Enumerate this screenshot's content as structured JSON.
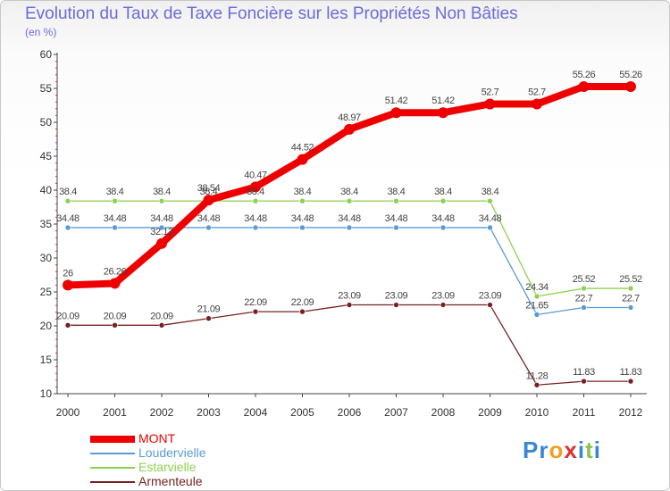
{
  "chart_data": {
    "type": "line",
    "title": "Evolution du Taux de Taxe Foncière sur les Propriétés Non Bâties",
    "unit": "(en %)",
    "xlabel": "",
    "ylabel": "(en %)",
    "ylim": [
      10,
      60
    ],
    "yticks": [
      "10",
      "15",
      "20",
      "25",
      "30",
      "35",
      "40",
      "45",
      "50",
      "55",
      "60"
    ],
    "categories": [
      "2000",
      "2001",
      "2002",
      "2003",
      "2004",
      "2005",
      "2006",
      "2007",
      "2008",
      "2009",
      "2010",
      "2011",
      "2012"
    ],
    "series": [
      {
        "name": "MONT",
        "color": "#ee0000",
        "values": [
          26,
          26.26,
          32.13,
          38.54,
          40.47,
          44.52,
          48.97,
          51.42,
          51.42,
          52.7,
          52.7,
          55.26,
          55.26
        ],
        "labels": [
          "26",
          "26.26",
          "32.13",
          "38.54",
          "40.47",
          "44.52",
          "48.97",
          "51.42",
          "51.42",
          "52.7",
          "52.7",
          "55.26",
          "55.26"
        ]
      },
      {
        "name": "Loudervielle",
        "color": "#5b9bd5",
        "values": [
          34.48,
          34.48,
          34.48,
          34.48,
          34.48,
          34.48,
          34.48,
          34.48,
          34.48,
          34.48,
          21.65,
          22.7,
          22.7
        ],
        "labels": [
          "34.48",
          "34.48",
          "34.48",
          "34.48",
          "34.48",
          "34.48",
          "34.48",
          "34.48",
          "34.48",
          "34.48",
          "21.65",
          "22.7",
          "22.7"
        ]
      },
      {
        "name": "Estarvielle",
        "color": "#8dd14f",
        "values": [
          38.4,
          38.4,
          38.4,
          38.4,
          38.4,
          38.4,
          38.4,
          38.4,
          38.4,
          38.4,
          24.34,
          25.52,
          25.52
        ],
        "labels": [
          "38.4",
          "38.4",
          "38.4",
          "38.4",
          "38.4",
          "38.4",
          "38.4",
          "38.4",
          "38.4",
          "38.4",
          "24.34",
          "25.52",
          "25.52"
        ]
      },
      {
        "name": "Armenteule",
        "color": "#772222",
        "values": [
          20.09,
          20.09,
          20.09,
          21.09,
          22.09,
          22.09,
          23.09,
          23.09,
          23.09,
          23.09,
          11.28,
          11.83,
          11.83
        ],
        "labels": [
          "20.09",
          "20.09",
          "20.09",
          "21.09",
          "22.09",
          "22.09",
          "23.09",
          "23.09",
          "23.09",
          "23.09",
          "11.28",
          "11.83",
          "11.83"
        ]
      }
    ],
    "legend": "bottom-left"
  },
  "logo": {
    "parts": [
      {
        "text": "P",
        "color": "#3a86d6"
      },
      {
        "text": "r",
        "color": "#3a86d6"
      },
      {
        "text": "o",
        "color": "#f0a020"
      },
      {
        "text": "x",
        "color": "#e03030"
      },
      {
        "text": "i",
        "color": "#3a86d6"
      },
      {
        "text": "t",
        "color": "#8bc34a"
      },
      {
        "text": "i",
        "color": "#3a86d6"
      }
    ]
  }
}
